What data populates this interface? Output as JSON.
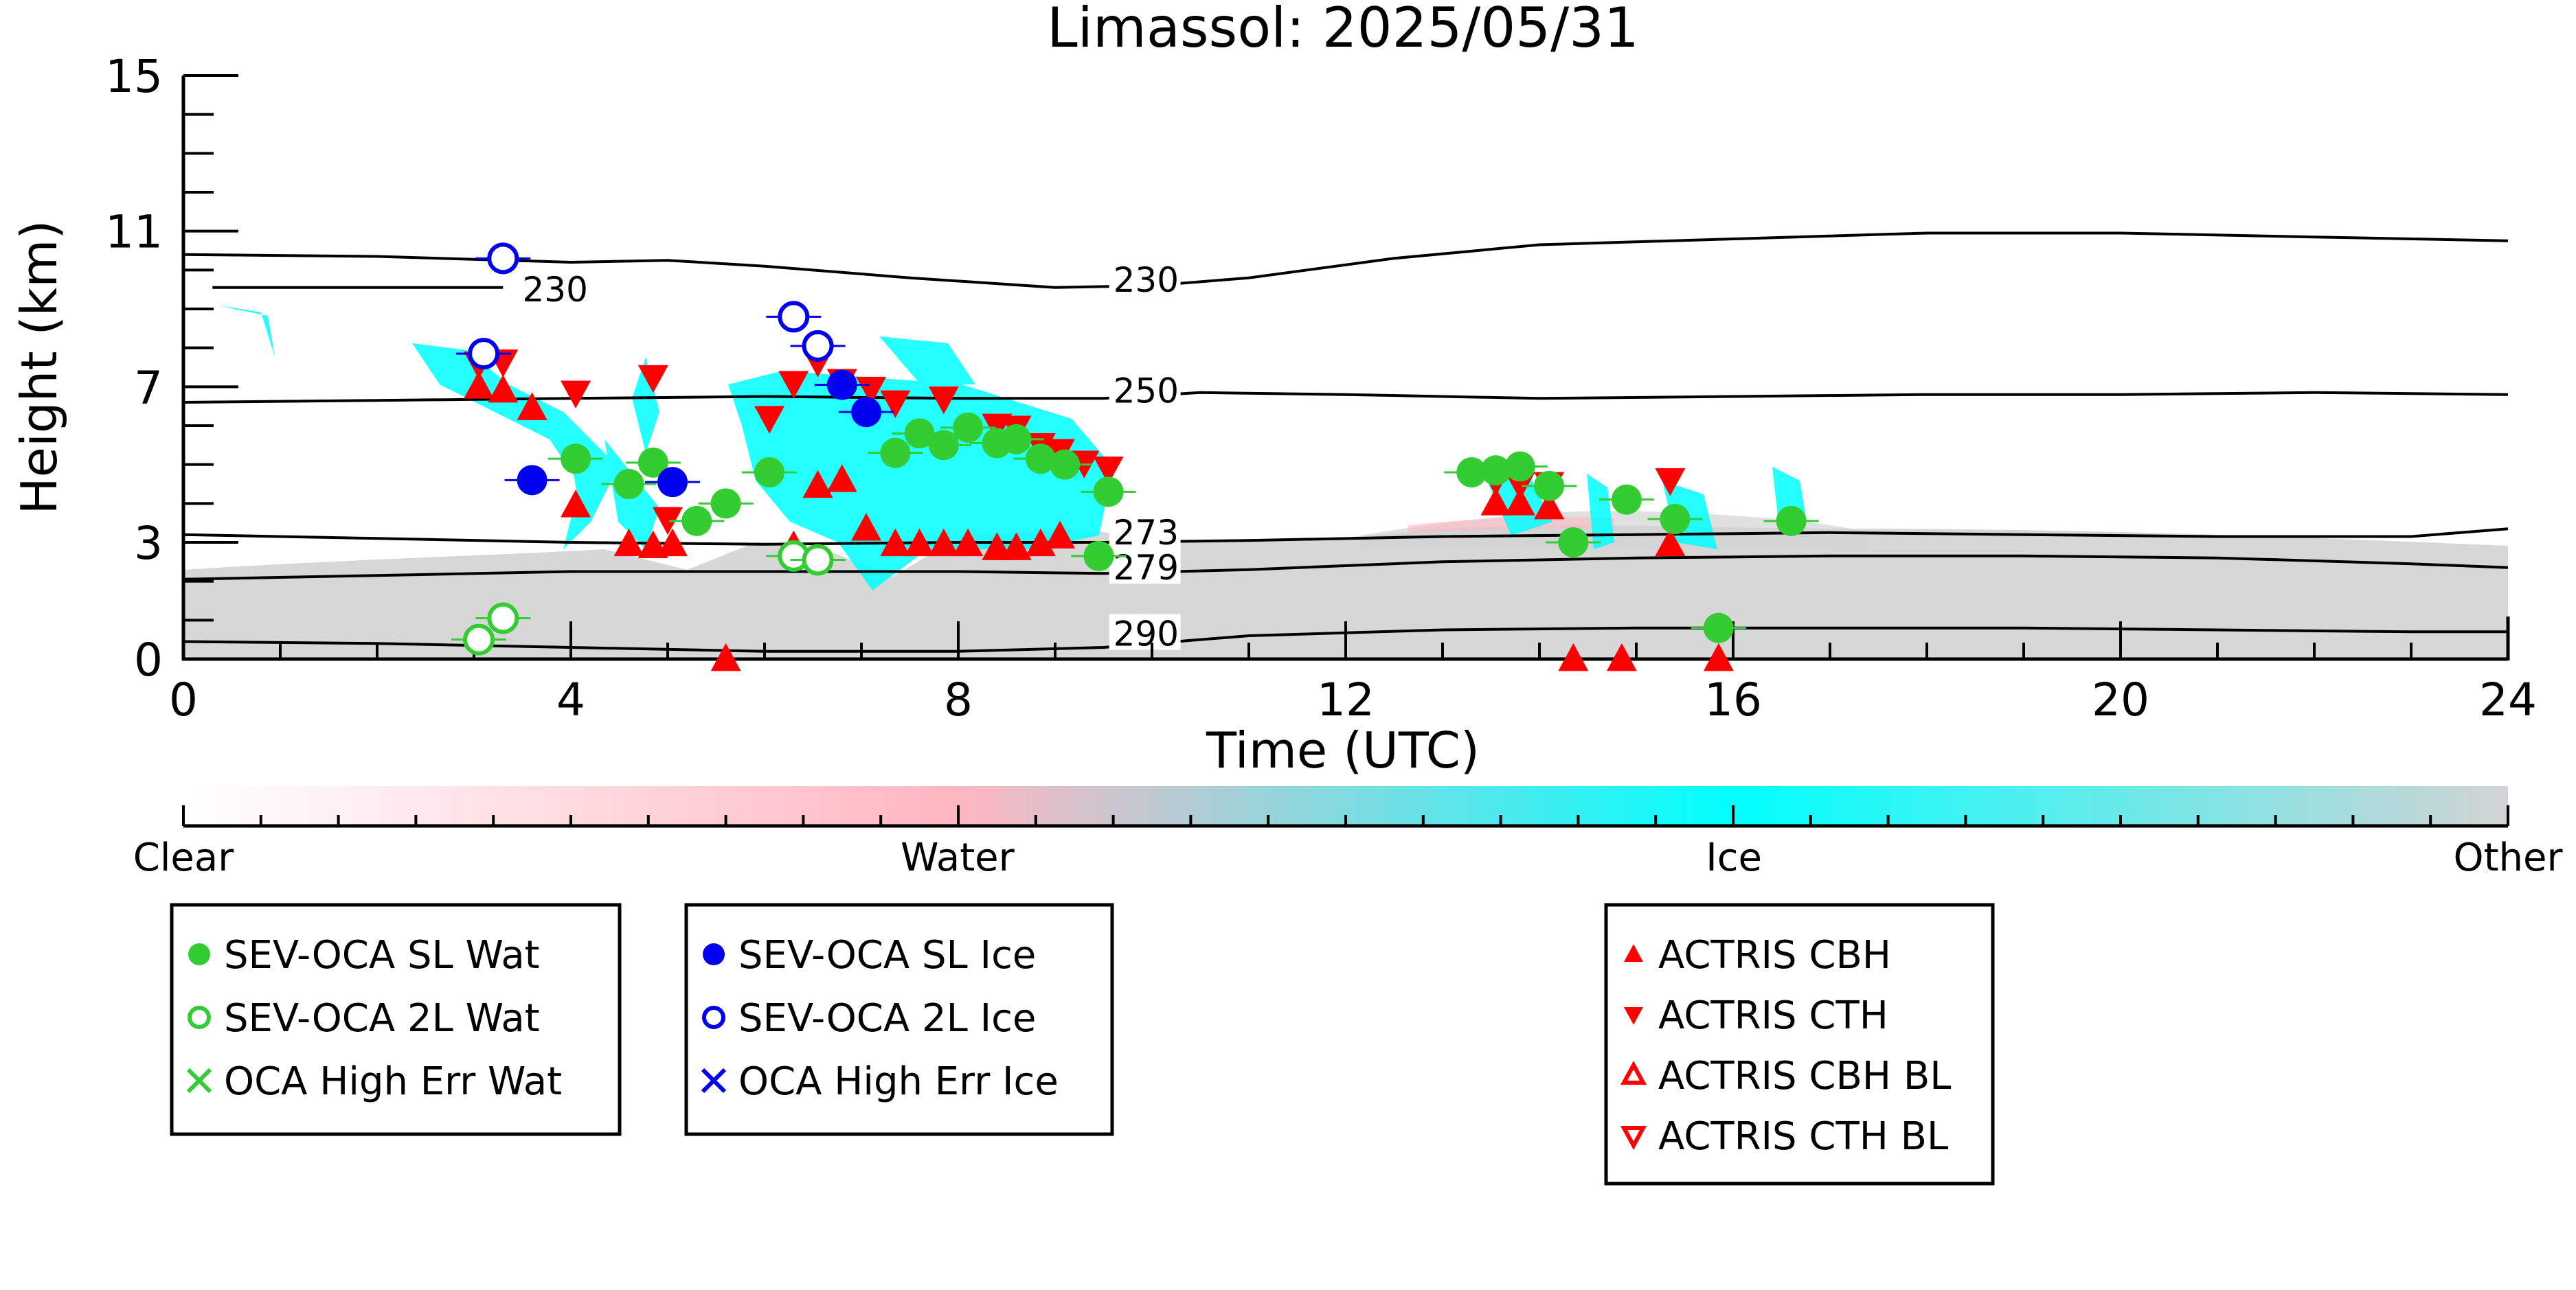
{
  "chart_data": {
    "type": "scatter",
    "title": "Limassol: 2025/05/31",
    "xlabel": "Time (UTC)",
    "ylabel": "Height (km)",
    "xlim": [
      0,
      24
    ],
    "ylim": [
      0,
      15
    ],
    "xticks": [
      0,
      4,
      8,
      12,
      16,
      20,
      24
    ],
    "yticks": [
      0,
      3,
      7,
      11,
      15
    ],
    "colorbar": {
      "labels": [
        {
          "text": "Clear",
          "pos": 0.0
        },
        {
          "text": "Water",
          "pos": 0.333
        },
        {
          "text": "Ice",
          "pos": 0.667
        },
        {
          "text": "Other",
          "pos": 1.0
        }
      ],
      "colors": [
        "#ffffff",
        "#ffb6c1",
        "#00ffff",
        "#d3d3d3"
      ]
    },
    "isotherms": [
      {
        "label": "230",
        "label_x": 3.5,
        "label_y": 9.3,
        "points": [
          [
            0.3,
            9.55
          ],
          [
            1.5,
            9.55
          ],
          [
            3.3,
            9.55
          ]
        ]
      },
      {
        "label": "230",
        "label_x": 9.6,
        "label_y": 9.55,
        "points": [
          [
            0,
            10.4
          ],
          [
            2,
            10.35
          ],
          [
            4,
            10.2
          ],
          [
            5,
            10.25
          ],
          [
            6,
            10.1
          ],
          [
            7.5,
            9.8
          ],
          [
            9,
            9.55
          ],
          [
            10,
            9.6
          ],
          [
            11,
            9.8
          ],
          [
            12.5,
            10.3
          ],
          [
            14,
            10.65
          ],
          [
            16,
            10.8
          ],
          [
            18,
            10.95
          ],
          [
            20,
            10.95
          ],
          [
            22,
            10.85
          ],
          [
            24,
            10.75
          ]
        ]
      },
      {
        "label": "250",
        "label_x": 9.6,
        "label_y": 6.7,
        "points": [
          [
            0,
            6.6
          ],
          [
            2,
            6.65
          ],
          [
            4,
            6.7
          ],
          [
            6,
            6.75
          ],
          [
            8,
            6.7
          ],
          [
            9.5,
            6.7
          ],
          [
            10.5,
            6.85
          ],
          [
            12,
            6.8
          ],
          [
            14,
            6.7
          ],
          [
            16,
            6.75
          ],
          [
            18,
            6.8
          ],
          [
            20,
            6.8
          ],
          [
            22,
            6.85
          ],
          [
            24,
            6.8
          ]
        ]
      },
      {
        "label": "273",
        "label_x": 9.6,
        "label_y": 3.05,
        "points": [
          [
            0,
            3.2
          ],
          [
            2,
            3.1
          ],
          [
            4,
            3.0
          ],
          [
            6,
            2.95
          ],
          [
            8,
            3.0
          ],
          [
            9.5,
            3.0
          ],
          [
            11,
            3.05
          ],
          [
            13,
            3.15
          ],
          [
            15,
            3.2
          ],
          [
            17,
            3.25
          ],
          [
            19,
            3.2
          ],
          [
            21,
            3.15
          ],
          [
            23,
            3.15
          ],
          [
            24,
            3.35
          ]
        ]
      },
      {
        "label": "279",
        "label_x": 9.6,
        "label_y": 2.15,
        "points": [
          [
            0,
            2.05
          ],
          [
            2,
            2.15
          ],
          [
            4,
            2.25
          ],
          [
            6,
            2.25
          ],
          [
            8,
            2.25
          ],
          [
            9.5,
            2.2
          ],
          [
            11,
            2.3
          ],
          [
            13,
            2.5
          ],
          [
            15,
            2.6
          ],
          [
            17,
            2.65
          ],
          [
            19,
            2.65
          ],
          [
            21,
            2.6
          ],
          [
            23,
            2.45
          ],
          [
            24,
            2.35
          ]
        ]
      },
      {
        "label": "290",
        "label_x": 9.6,
        "label_y": 0.45,
        "points": [
          [
            0,
            0.45
          ],
          [
            2,
            0.4
          ],
          [
            4,
            0.3
          ],
          [
            6,
            0.2
          ],
          [
            8,
            0.2
          ],
          [
            9.5,
            0.3
          ],
          [
            11,
            0.6
          ],
          [
            13,
            0.75
          ],
          [
            15,
            0.8
          ],
          [
            17,
            0.8
          ],
          [
            19,
            0.8
          ],
          [
            21,
            0.75
          ],
          [
            23,
            0.7
          ],
          [
            24,
            0.7
          ]
        ]
      }
    ],
    "series": [
      {
        "name": "SEV-OCA SL Wat",
        "color": "#33cc33",
        "marker": "filled-circle",
        "points": [
          [
            4.05,
            5.15
          ],
          [
            4.6,
            4.5
          ],
          [
            4.85,
            5.05
          ],
          [
            5.3,
            3.55
          ],
          [
            5.6,
            4.0
          ],
          [
            6.05,
            4.8
          ],
          [
            7.35,
            5.3
          ],
          [
            7.6,
            5.8
          ],
          [
            7.85,
            5.5
          ],
          [
            8.1,
            5.95
          ],
          [
            8.4,
            5.55
          ],
          [
            8.6,
            5.65
          ],
          [
            8.85,
            5.15
          ],
          [
            9.1,
            5.0
          ],
          [
            9.55,
            4.3
          ],
          [
            9.45,
            2.65
          ],
          [
            13.3,
            4.8
          ],
          [
            13.55,
            4.85
          ],
          [
            13.8,
            4.95
          ],
          [
            14.1,
            4.45
          ],
          [
            14.35,
            3.0
          ],
          [
            14.9,
            4.1
          ],
          [
            15.4,
            3.6
          ],
          [
            16.6,
            3.55
          ],
          [
            15.85,
            0.8
          ]
        ]
      },
      {
        "name": "SEV-OCA 2L Wat",
        "color": "#33cc33",
        "marker": "open-circle",
        "points": [
          [
            3.05,
            0.5
          ],
          [
            3.3,
            1.05
          ],
          [
            6.3,
            2.65
          ],
          [
            6.55,
            2.55
          ]
        ]
      },
      {
        "name": "OCA High Err Wat",
        "color": "#33cc33",
        "marker": "x",
        "points": []
      },
      {
        "name": "SEV-OCA SL Ice",
        "color": "#0000ee",
        "marker": "filled-circle",
        "points": [
          [
            3.6,
            4.6
          ],
          [
            5.05,
            4.55
          ],
          [
            6.8,
            7.05
          ],
          [
            7.05,
            6.35
          ]
        ]
      },
      {
        "name": "SEV-OCA 2L Ice",
        "color": "#0000ee",
        "marker": "open-circle",
        "points": [
          [
            3.3,
            10.3
          ],
          [
            3.1,
            7.85
          ],
          [
            6.3,
            8.8
          ],
          [
            6.55,
            8.05
          ]
        ]
      },
      {
        "name": "OCA High Err Ice",
        "color": "#0000ee",
        "marker": "x",
        "points": []
      },
      {
        "name": "ACTRIS CBH",
        "color": "#ff0000",
        "marker": "triangle-up",
        "points": [
          [
            3.05,
            7.0
          ],
          [
            3.3,
            6.9
          ],
          [
            3.6,
            6.45
          ],
          [
            4.05,
            3.95
          ],
          [
            4.6,
            2.95
          ],
          [
            4.85,
            2.9
          ],
          [
            5.05,
            2.95
          ],
          [
            5.6,
            0.0
          ],
          [
            6.3,
            2.9
          ],
          [
            6.55,
            4.45
          ],
          [
            6.8,
            4.6
          ],
          [
            7.05,
            3.35
          ],
          [
            7.35,
            2.95
          ],
          [
            7.6,
            2.95
          ],
          [
            7.85,
            2.95
          ],
          [
            8.1,
            2.95
          ],
          [
            8.4,
            2.85
          ],
          [
            8.6,
            2.85
          ],
          [
            8.85,
            2.95
          ],
          [
            9.05,
            3.15
          ],
          [
            13.55,
            4.0
          ],
          [
            13.8,
            4.0
          ],
          [
            14.1,
            3.9
          ],
          [
            14.35,
            0.0
          ],
          [
            14.85,
            0.0
          ],
          [
            15.35,
            2.95
          ],
          [
            15.85,
            0.0
          ]
        ]
      },
      {
        "name": "ACTRIS CTH",
        "color": "#ff0000",
        "marker": "triangle-down",
        "points": [
          [
            3.05,
            7.6
          ],
          [
            3.3,
            7.65
          ],
          [
            4.05,
            6.85
          ],
          [
            4.85,
            7.25
          ],
          [
            5.0,
            3.6
          ],
          [
            6.05,
            6.2
          ],
          [
            6.3,
            7.1
          ],
          [
            6.55,
            7.65
          ],
          [
            6.8,
            7.15
          ],
          [
            7.1,
            6.95
          ],
          [
            7.35,
            6.6
          ],
          [
            7.85,
            6.7
          ],
          [
            8.4,
            6.0
          ],
          [
            8.6,
            5.95
          ],
          [
            8.85,
            5.5
          ],
          [
            9.05,
            5.35
          ],
          [
            9.3,
            5.05
          ],
          [
            9.55,
            4.9
          ],
          [
            13.55,
            4.6
          ],
          [
            13.8,
            4.5
          ],
          [
            14.1,
            4.5
          ],
          [
            15.35,
            4.6
          ]
        ]
      },
      {
        "name": "ACTRIS CBH BL",
        "color": "#ff0000",
        "marker": "open-triangle-up",
        "points": []
      },
      {
        "name": "ACTRIS CTH BL",
        "color": "#ff0000",
        "marker": "open-triangle-down",
        "points": []
      }
    ]
  }
}
